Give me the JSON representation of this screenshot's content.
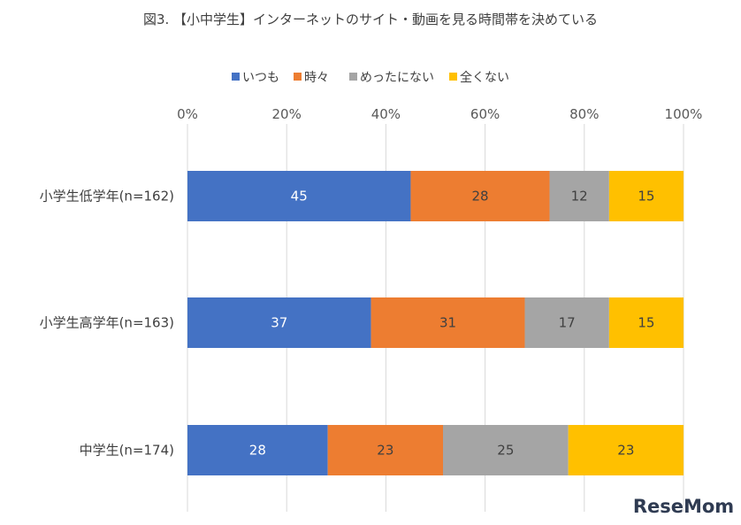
{
  "chart_data": {
    "type": "bar",
    "orientation": "horizontal",
    "stacked": true,
    "percent_stacked": true,
    "title": "図3. 【小中学生】インターネットのサイト・動画を見る時間帯を決めている",
    "legend_position": "top",
    "categories": [
      "小学生低学年(n=162)",
      "小学生高学年(n=163)",
      "中学生(n=174)"
    ],
    "series": [
      {
        "name": "いつも",
        "values": [
          45,
          37,
          28
        ],
        "color": "#4472C4",
        "label_color": "#ffffff"
      },
      {
        "name": "時々",
        "values": [
          28,
          31,
          23
        ],
        "color": "#ED7D31",
        "label_color": "#404040"
      },
      {
        "name": "めったにない",
        "values": [
          12,
          17,
          25
        ],
        "color": "#A5A5A5",
        "label_color": "#404040"
      },
      {
        "name": "全くない",
        "values": [
          15,
          15,
          23
        ],
        "color": "#FFC000",
        "label_color": "#404040"
      }
    ],
    "x_ticks": [
      "0%",
      "20%",
      "40%",
      "60%",
      "80%",
      "100%"
    ],
    "xlim": [
      0,
      100
    ],
    "grid": true,
    "grid_color": "#D9D9D9"
  },
  "watermark": "ReseMom"
}
